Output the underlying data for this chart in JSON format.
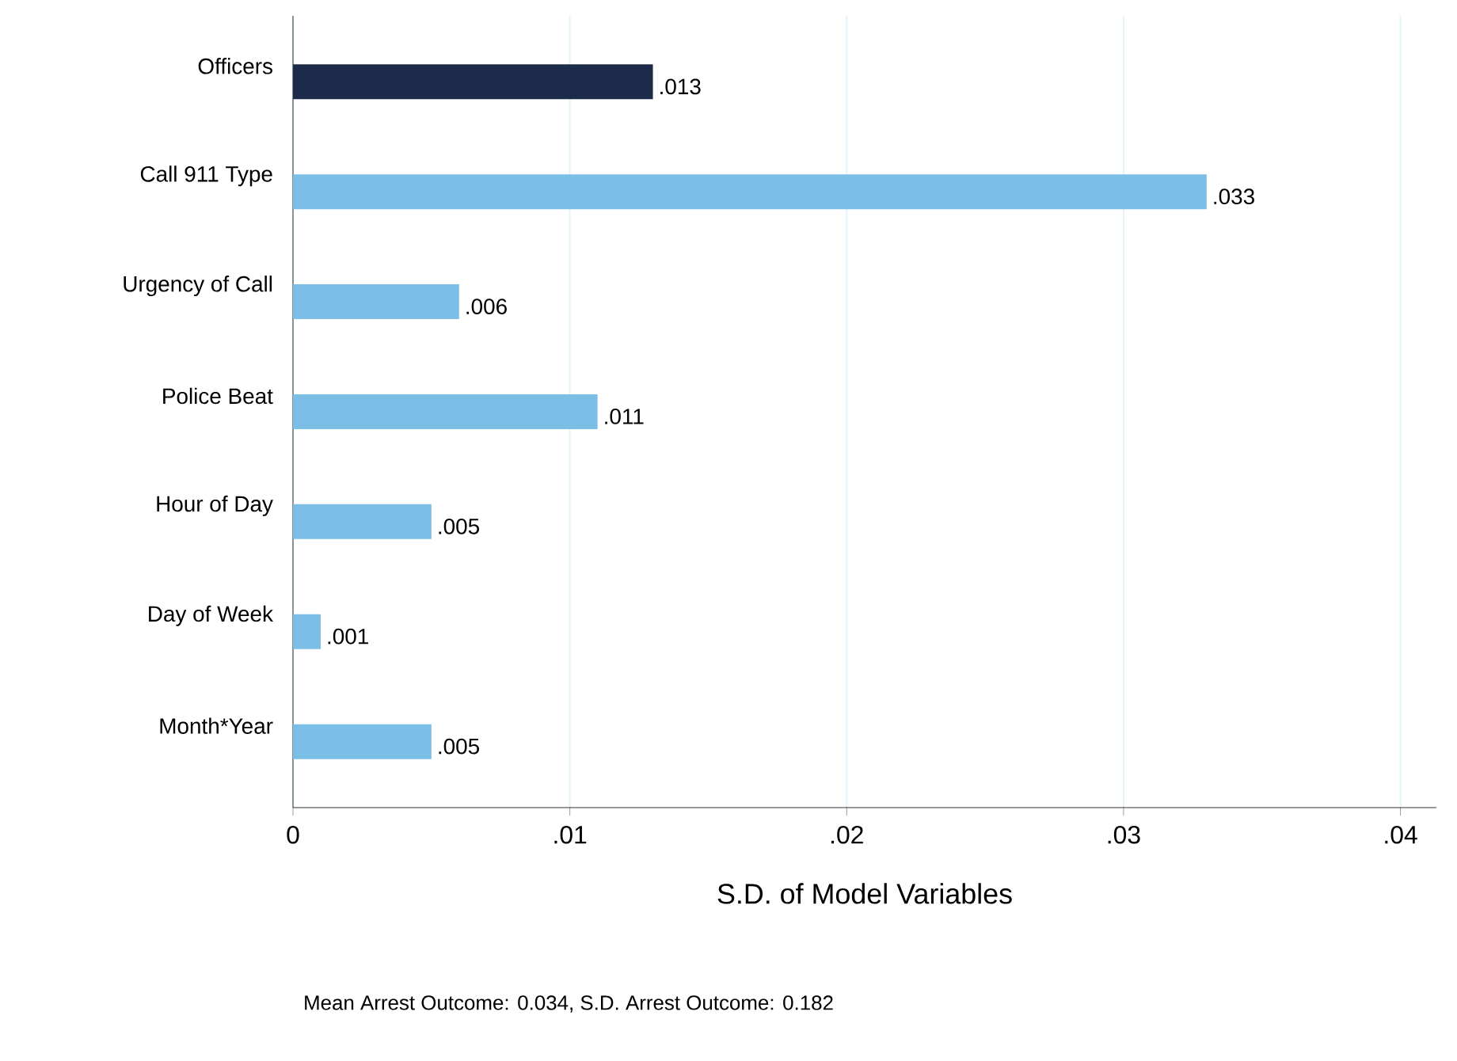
{
  "chart_data": {
    "type": "bar",
    "orientation": "horizontal",
    "xlabel": "S.D. of Model Variables",
    "categories": [
      "Officers",
      "Call 911 Type",
      "Urgency of Call",
      "Police Beat",
      "Hour of Day",
      "Day of Week",
      "Month*Year"
    ],
    "values": [
      0.013,
      0.033,
      0.006,
      0.011,
      0.005,
      0.001,
      0.005
    ],
    "value_labels": [
      ".013",
      ".033",
      ".006",
      ".011",
      ".005",
      ".001",
      ".005"
    ],
    "colors": [
      "#1c2b4a",
      "#7bbfe6",
      "#7bbfe6",
      "#7bbfe6",
      "#7bbfe6",
      "#7bbfe6",
      "#7bbfe6"
    ],
    "xlim": [
      0,
      0.0413
    ],
    "xticks": [
      0,
      {
        "value": 0.01,
        "label": ".01"
      },
      {
        "value": 0.02,
        "label": ".02"
      },
      {
        "value": 0.03,
        "label": ".03"
      },
      {
        "value": 0.04,
        "label": ".04"
      }
    ],
    "grid": "x",
    "annotations": [
      "Mean Arrest Outcome: 0.034, S.D. Arrest Outcome: 0.182"
    ]
  }
}
